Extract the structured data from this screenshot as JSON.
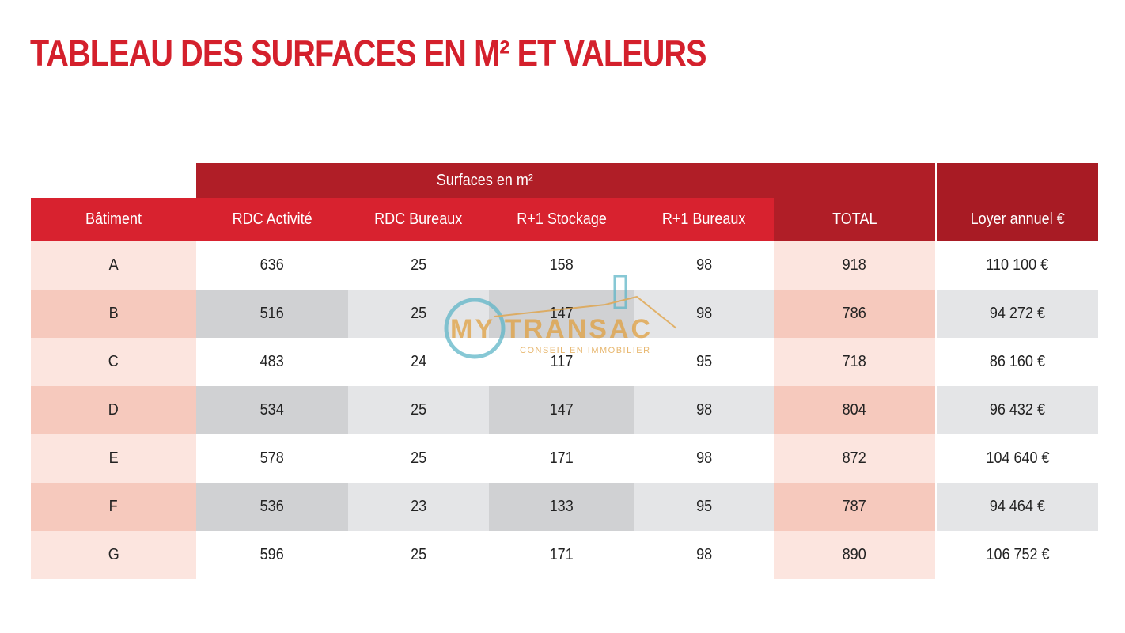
{
  "header": {
    "title": "TABLEAU DES SURFACES EN M² ET VALEURS"
  },
  "watermark": {
    "brand": "MY TRANSAC",
    "tagline": "CONSEIL EN IMMOBILIER"
  },
  "table": {
    "group_header": "Surfaces en m²",
    "columns": [
      "Bâtiment",
      "RDC Activité",
      "RDC Bureaux",
      "R+1 Stockage",
      "R+1 Bureaux",
      "TOTAL",
      "Loyer annuel €"
    ],
    "rows": [
      [
        "A",
        636,
        25,
        158,
        98,
        918,
        "110 100 €"
      ],
      [
        "B",
        516,
        25,
        147,
        98,
        786,
        "94 272 €"
      ],
      [
        "C",
        483,
        24,
        117,
        95,
        718,
        "86 160 €"
      ],
      [
        "D",
        534,
        25,
        147,
        98,
        804,
        "96 432 €"
      ],
      [
        "E",
        578,
        25,
        171,
        98,
        872,
        "104 640 €"
      ],
      [
        "F",
        536,
        23,
        133,
        95,
        787,
        "94 464 €"
      ],
      [
        "G",
        596,
        25,
        171,
        98,
        890,
        "106 752 €"
      ]
    ]
  }
}
